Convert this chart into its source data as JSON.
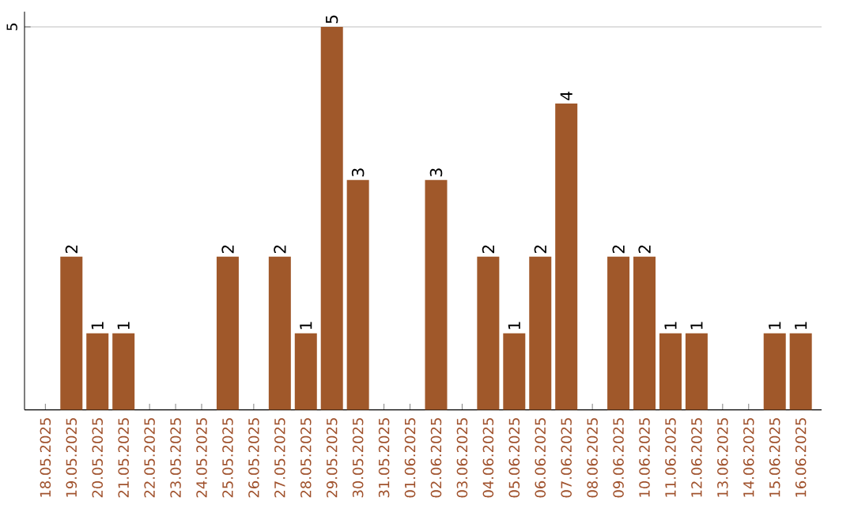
{
  "chart_data": {
    "type": "bar",
    "categories": [
      "18.05.2025",
      "19.05.2025",
      "20.05.2025",
      "21.05.2025",
      "22.05.2025",
      "23.05.2025",
      "24.05.2025",
      "25.05.2025",
      "26.05.2025",
      "27.05.2025",
      "28.05.2025",
      "29.05.2025",
      "30.05.2025",
      "31.05.2025",
      "01.06.2025",
      "02.06.2025",
      "03.06.2025",
      "04.06.2025",
      "05.06.2025",
      "06.06.2025",
      "07.06.2025",
      "08.06.2025",
      "09.06.2025",
      "10.06.2025",
      "11.06.2025",
      "12.06.2025",
      "13.06.2025",
      "14.06.2025",
      "15.06.2025",
      "16.06.2025"
    ],
    "values": [
      0,
      2,
      1,
      1,
      0,
      0,
      0,
      2,
      0,
      2,
      1,
      5,
      3,
      0,
      0,
      3,
      0,
      2,
      1,
      2,
      4,
      0,
      2,
      2,
      1,
      1,
      0,
      0,
      1,
      1
    ],
    "value_labels": [
      null,
      "2",
      "1",
      "1",
      null,
      null,
      null,
      "2",
      null,
      "2",
      "1",
      "5",
      "3",
      null,
      null,
      "3",
      null,
      "2",
      "1",
      "2",
      "4",
      null,
      "2",
      "2",
      "1",
      "1",
      null,
      null,
      "1",
      "1"
    ],
    "color": "#a0582a",
    "ylim": [
      0,
      5.2
    ],
    "yticks": [
      5
    ],
    "grid": "y"
  }
}
